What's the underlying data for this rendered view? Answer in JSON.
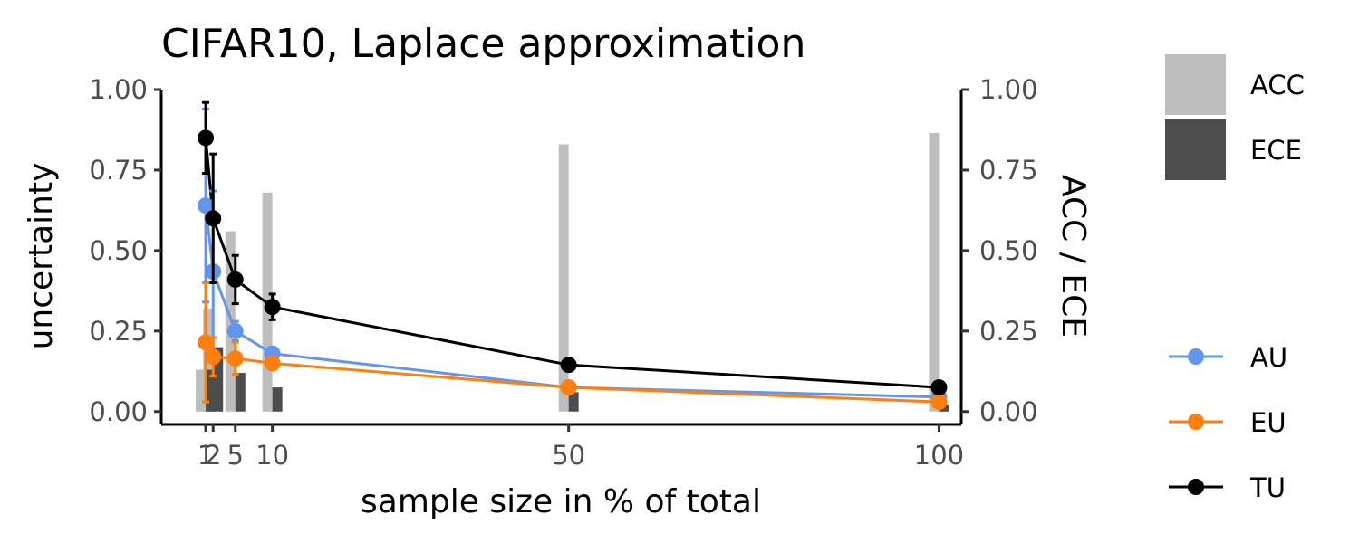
{
  "chart_data": {
    "type": "line",
    "title": "CIFAR10, Laplace approximation",
    "xlabel": "sample size in % of total",
    "ylabel": "uncertainty",
    "y2label": "ACC / ECE",
    "xlim": [
      -5,
      103
    ],
    "ylim": [
      -0.04,
      1.0
    ],
    "x_ticks": [
      1,
      2,
      5,
      10,
      50,
      100
    ],
    "x_tick_labels": [
      "1",
      "2",
      "5",
      "10",
      "50",
      "100"
    ],
    "y_ticks": [
      0.0,
      0.25,
      0.5,
      0.75,
      1.0
    ],
    "y_tick_labels": [
      "0.00",
      "0.25",
      "0.50",
      "0.75",
      "1.00"
    ],
    "y2_ticks": [
      0.0,
      0.25,
      0.5,
      0.75,
      1.0
    ],
    "y2_tick_labels": [
      "0.00",
      "0.25",
      "0.50",
      "0.75",
      "1.00"
    ],
    "grid": false,
    "legend_position": "right",
    "x": [
      1,
      2,
      5,
      10,
      50,
      100
    ],
    "series": [
      {
        "name": "AU",
        "color": "#6495ED",
        "values": [
          0.64,
          0.435,
          0.25,
          0.18,
          0.075,
          0.045
        ],
        "err": [
          0.3,
          0.25,
          0.03,
          0.02,
          0.005,
          0.005
        ]
      },
      {
        "name": "EU",
        "color": "#FF7F0E",
        "values": [
          0.215,
          0.17,
          0.165,
          0.15,
          0.075,
          0.03
        ],
        "err": [
          0.185,
          0.06,
          0.05,
          0.02,
          0.005,
          0.005
        ]
      },
      {
        "name": "TU",
        "color": "#000000",
        "values": [
          0.85,
          0.6,
          0.41,
          0.325,
          0.145,
          0.075
        ],
        "err": [
          0.11,
          0.2,
          0.075,
          0.04,
          0.005,
          0.005
        ]
      }
    ],
    "bars": [
      {
        "name": "ACC",
        "color": "#BEBEBE",
        "values": [
          0.13,
          0.32,
          0.56,
          0.68,
          0.83,
          0.865
        ]
      },
      {
        "name": "ECE",
        "color": "#4D4D4D",
        "values": [
          0.13,
          0.2,
          0.12,
          0.075,
          0.06,
          0.02
        ]
      }
    ]
  }
}
